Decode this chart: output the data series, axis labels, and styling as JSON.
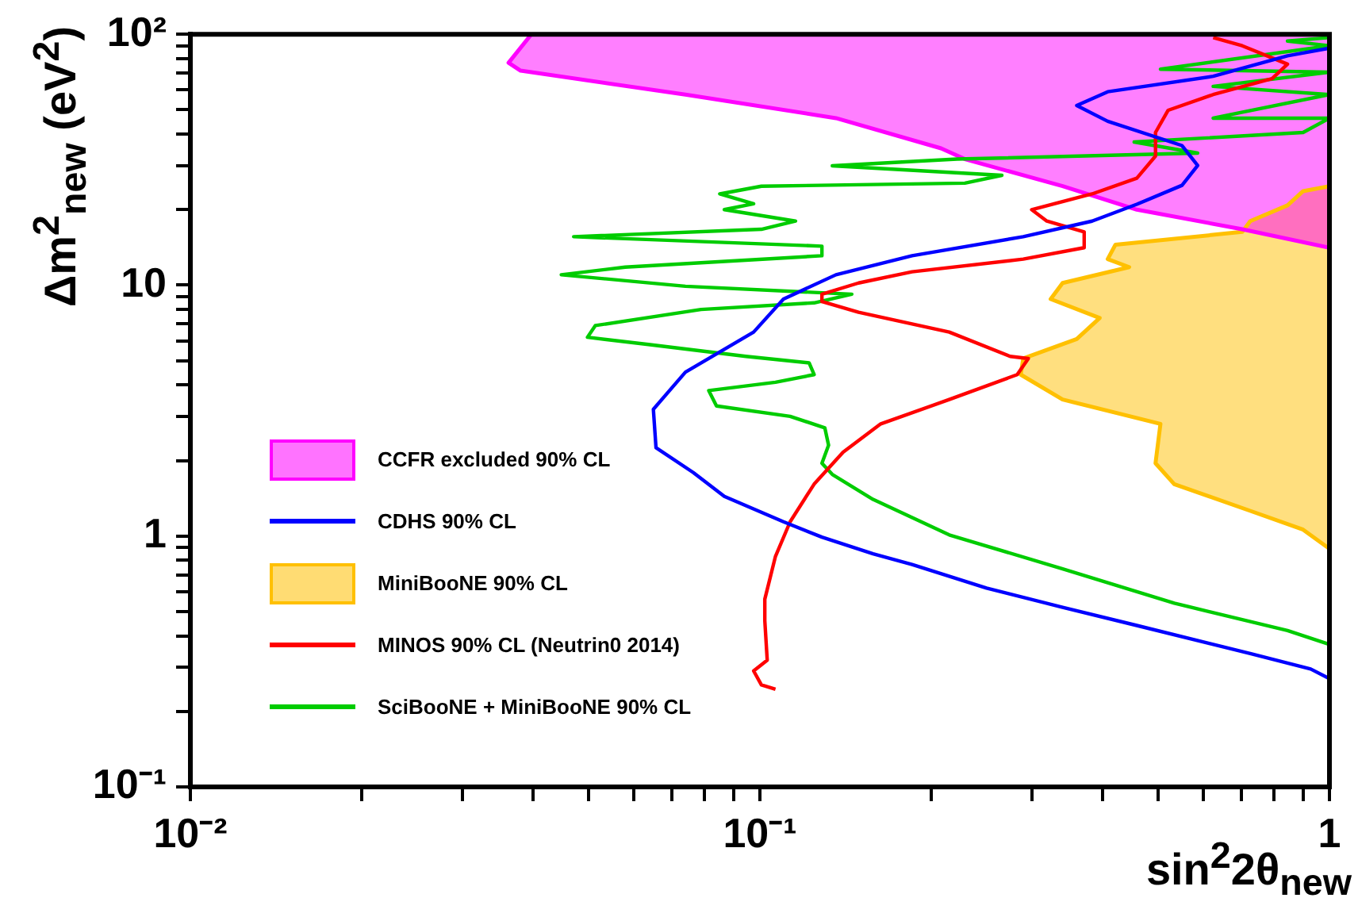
{
  "chart_data": {
    "type": "line",
    "xlabel": "sin$^{2}$2θ$_{new}$",
    "ylabel": "Δm$^{2}$$_{new}$ (eV$^{2}$)",
    "log": "xy",
    "legend": "left",
    "marker": "none",
    "xlim": [
      0.01,
      1
    ],
    "ylim": [
      0.1,
      100
    ],
    "xticks": [
      {
        "value": 0.01,
        "label": "10⁻²"
      },
      {
        "value": 0.02,
        "label": null
      },
      {
        "value": 0.03,
        "label": null
      },
      {
        "value": 0.04,
        "label": null
      },
      {
        "value": 0.05,
        "label": null
      },
      {
        "value": 0.06,
        "label": null
      },
      {
        "value": 0.07,
        "label": null
      },
      {
        "value": 0.08,
        "label": null
      },
      {
        "value": 0.09,
        "label": null
      },
      {
        "value": 0.1,
        "label": "10⁻¹"
      },
      {
        "value": 0.2,
        "label": null
      },
      {
        "value": 0.3,
        "label": null
      },
      {
        "value": 0.4,
        "label": null
      },
      {
        "value": 0.5,
        "label": null
      },
      {
        "value": 0.6,
        "label": null
      },
      {
        "value": 0.7,
        "label": null
      },
      {
        "value": 0.8,
        "label": null
      },
      {
        "value": 0.9,
        "label": null
      },
      {
        "value": 1,
        "label": "1"
      }
    ],
    "yticks": [
      {
        "value": 0.1,
        "label": "10⁻¹"
      },
      {
        "value": 0.2,
        "label": null
      },
      {
        "value": 0.3,
        "label": null
      },
      {
        "value": 0.4,
        "label": null
      },
      {
        "value": 0.5,
        "label": null
      },
      {
        "value": 0.6,
        "label": null
      },
      {
        "value": 0.7,
        "label": null
      },
      {
        "value": 0.8,
        "label": null
      },
      {
        "value": 0.9,
        "label": null
      },
      {
        "value": 1,
        "label": "1"
      },
      {
        "value": 2,
        "label": null
      },
      {
        "value": 3,
        "label": null
      },
      {
        "value": 4,
        "label": null
      },
      {
        "value": 5,
        "label": null
      },
      {
        "value": 6,
        "label": null
      },
      {
        "value": 7,
        "label": null
      },
      {
        "value": 8,
        "label": null
      },
      {
        "value": 9,
        "label": null
      },
      {
        "value": 10,
        "label": "10"
      },
      {
        "value": 20,
        "label": null
      },
      {
        "value": 30,
        "label": null
      },
      {
        "value": 40,
        "label": null
      },
      {
        "value": 50,
        "label": null
      },
      {
        "value": 60,
        "label": null
      },
      {
        "value": 70,
        "label": null
      },
      {
        "value": 80,
        "label": null
      },
      {
        "value": 90,
        "label": null
      },
      {
        "value": 100,
        "label": "10²"
      }
    ],
    "series": [
      {
        "name": "CCFR excluded 90% CL",
        "type": "area",
        "color": "#ff00ff",
        "x": [
          0.0397,
          0.0362,
          0.038,
          0.074,
          0.136,
          0.208,
          0.229,
          0.34,
          0.459,
          0.703,
          1,
          1
        ],
        "values": [
          100,
          77,
          71.6,
          57.5,
          46.3,
          35.1,
          31.8,
          24.8,
          20,
          16.7,
          14.1,
          100
        ]
      },
      {
        "name": "CDHS 90% CL",
        "color": "#0000ff",
        "x": [
          1,
          0.844,
          0.625,
          0.408,
          0.36,
          0.408,
          0.551,
          0.587,
          0.551,
          0.459,
          0.383,
          0.29,
          0.185,
          0.136,
          0.11,
          0.0975,
          0.074,
          0.065,
          0.0657,
          0.0764,
          0.0866,
          0.11,
          0.1285,
          0.158,
          0.185,
          0.25,
          0.34,
          0.459,
          0.726,
          0.927,
          1
        ],
        "values": [
          88,
          82,
          68,
          59,
          52,
          45,
          36,
          30,
          25,
          21,
          18,
          15.6,
          13.1,
          11,
          8.8,
          6.5,
          4.5,
          3.2,
          2.25,
          1.79,
          1.44,
          1.14,
          0.99,
          0.85,
          0.77,
          0.62,
          0.52,
          0.44,
          0.34,
          0.295,
          0.27
        ]
      },
      {
        "name": "MiniBooNE 90% CL",
        "type": "area",
        "color": "#ffc000",
        "x": [
          1,
          0.899,
          0.844,
          0.726,
          0.703,
          0.421,
          0.408,
          0.445,
          0.34,
          0.324,
          0.395,
          0.36,
          0.29,
          0.287,
          0.34,
          0.505,
          0.495,
          0.534,
          0.726,
          0.899,
          1
        ],
        "values": [
          24.8,
          23.7,
          20.8,
          18,
          16.3,
          14.5,
          12.7,
          11.8,
          10.2,
          8.8,
          7.4,
          6.1,
          5.1,
          4.4,
          3.5,
          2.8,
          1.95,
          1.61,
          1.26,
          1.06,
          0.89
        ]
      },
      {
        "name": "MINOS 90% CL (Neutrin0 2014)",
        "color": "#ff0000",
        "x": [
          0.625,
          0.703,
          0.844,
          0.793,
          0.625,
          0.521,
          0.495,
          0.495,
          0.459,
          0.383,
          0.3,
          0.319,
          0.371,
          0.371,
          0.29,
          0.185,
          0.149,
          0.1285,
          0.1285,
          0.149,
          0.215,
          0.275,
          0.296,
          0.283,
          0.215,
          0.163,
          0.14,
          0.1245,
          0.113,
          0.1065,
          0.102,
          0.102,
          0.103,
          0.0975,
          0.1006,
          0.1065
        ],
        "values": [
          97,
          90,
          76,
          66.6,
          57.5,
          49.8,
          40.6,
          32.7,
          26.7,
          23.1,
          20,
          18,
          16.3,
          14.1,
          12.7,
          11.3,
          10.2,
          9.2,
          8.6,
          7.8,
          6.5,
          5.2,
          5.1,
          4.4,
          3.5,
          2.8,
          2.16,
          1.61,
          1.14,
          0.83,
          0.56,
          0.46,
          0.32,
          0.29,
          0.255,
          0.245
        ]
      },
      {
        "name": "SciBooNE + MiniBooNE 90% CL",
        "color": "#00cc00",
        "x": [
          1,
          0.844,
          1,
          0.505,
          1,
          0.625,
          1,
          0.625,
          1,
          0.899,
          0.454,
          0.587,
          0.222,
          0.134,
          0.266,
          0.229,
          0.1006,
          0.085,
          0.0975,
          0.0866,
          0.1155,
          0.1006,
          0.0471,
          0.1285,
          0.1285,
          0.058,
          0.0448,
          0.074,
          0.145,
          0.1245,
          0.0788,
          0.0514,
          0.0498,
          0.0637,
          0.0945,
          0.122,
          0.1245,
          0.1065,
          0.0813,
          0.0839,
          0.113,
          0.13,
          0.132,
          0.1285,
          0.134,
          0.158,
          0.215,
          0.34,
          0.534,
          0.844,
          1
        ],
        "values": [
          97,
          94,
          90,
          72.6,
          70.6,
          62,
          57.5,
          46.3,
          46.3,
          40.6,
          37.2,
          33.6,
          31.8,
          29.9,
          27.4,
          25.5,
          24.8,
          23.1,
          21.1,
          20,
          18,
          16.7,
          15.6,
          14.3,
          13.1,
          11.8,
          11,
          9.9,
          9.2,
          8.5,
          8,
          6.9,
          6.2,
          5.8,
          5.2,
          4.9,
          4.4,
          4.1,
          3.8,
          3.3,
          3,
          2.7,
          2.3,
          1.95,
          1.76,
          1.4,
          1.01,
          0.74,
          0.54,
          0.42,
          0.37
        ]
      }
    ]
  }
}
